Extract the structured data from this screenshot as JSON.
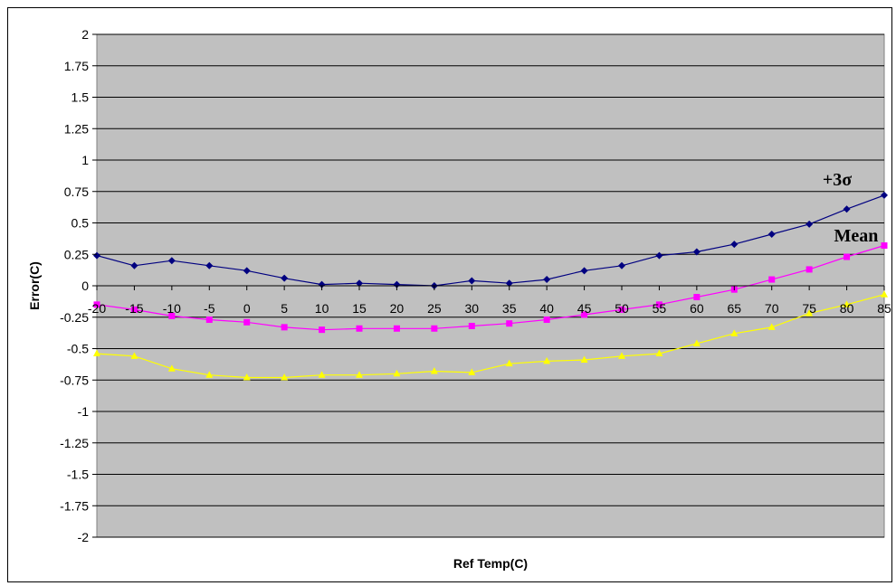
{
  "chart_data": {
    "type": "line",
    "title": "",
    "xlabel": "Ref Temp(C)",
    "ylabel": "Error(C)",
    "x": [
      -20,
      -15,
      -10,
      -5,
      0,
      5,
      10,
      15,
      20,
      25,
      30,
      35,
      40,
      45,
      50,
      55,
      60,
      65,
      70,
      75,
      80,
      85
    ],
    "x_tick_labels": [
      "-20",
      "-15",
      "-10",
      "-5",
      "0",
      "5",
      "10",
      "15",
      "20",
      "25",
      "30",
      "35",
      "40",
      "45",
      "50",
      "55",
      "60",
      "65",
      "70",
      "75",
      "80",
      "85"
    ],
    "ylim": [
      -2,
      2
    ],
    "y_tick_labels": [
      "2",
      "1.75",
      "1.5",
      "1.25",
      "1",
      "0.75",
      "0.5",
      "0.25",
      "0",
      "-0.25",
      "-0.5",
      "-0.75",
      "-1",
      "-1.25",
      "-1.5",
      "-1.75",
      "-2"
    ],
    "grid": true,
    "plot_background": "#c0c0c0",
    "series": [
      {
        "name": "+3σ",
        "color": "#000080",
        "marker": "diamond",
        "values": [
          0.24,
          0.16,
          0.2,
          0.16,
          0.12,
          0.06,
          0.01,
          0.02,
          0.01,
          0.0,
          0.04,
          0.02,
          0.05,
          0.12,
          0.16,
          0.24,
          0.27,
          0.33,
          0.41,
          0.49,
          0.61,
          0.72
        ]
      },
      {
        "name": "Mean",
        "color": "#ff00ff",
        "marker": "square",
        "values": [
          -0.15,
          -0.19,
          -0.24,
          -0.27,
          -0.29,
          -0.33,
          -0.35,
          -0.34,
          -0.34,
          -0.34,
          -0.32,
          -0.3,
          -0.27,
          -0.23,
          -0.19,
          -0.15,
          -0.09,
          -0.03,
          0.05,
          0.13,
          0.23,
          0.32
        ]
      },
      {
        "name": "",
        "color": "#ffff00",
        "marker": "triangle",
        "values": [
          -0.54,
          -0.56,
          -0.66,
          -0.71,
          -0.73,
          -0.73,
          -0.71,
          -0.71,
          -0.7,
          -0.68,
          -0.69,
          -0.62,
          -0.6,
          -0.59,
          -0.56,
          -0.54,
          -0.46,
          -0.38,
          -0.33,
          -0.22,
          -0.15,
          -0.07
        ]
      }
    ]
  }
}
